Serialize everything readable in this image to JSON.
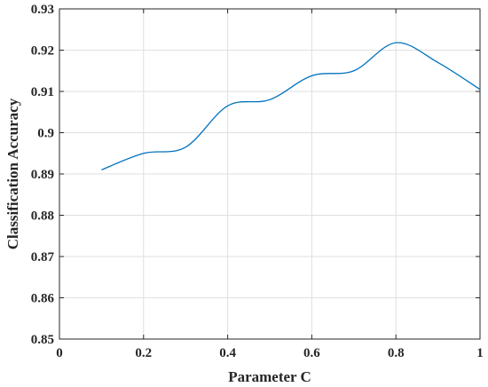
{
  "chart_data": {
    "type": "line",
    "title": "",
    "xlabel": "Parameter C",
    "ylabel": "Classification Accuracy",
    "xlim": [
      0,
      1
    ],
    "ylim": [
      0.85,
      0.93
    ],
    "grid": true,
    "x_ticks": [
      "0",
      "0.2",
      "0.4",
      "0.6",
      "0.8",
      "1"
    ],
    "y_ticks": [
      "0.85",
      "0.86",
      "0.87",
      "0.88",
      "0.89",
      "0.9",
      "0.91",
      "0.92",
      "0.93"
    ],
    "series": [
      {
        "color": "#0072bd",
        "x": [
          0.1,
          0.2,
          0.3,
          0.4,
          0.5,
          0.6,
          0.7,
          0.8,
          0.9,
          1.0
        ],
        "y": [
          0.891,
          0.895,
          0.8965,
          0.9065,
          0.908,
          0.9138,
          0.915,
          0.9218,
          0.917,
          0.9105
        ]
      }
    ]
  }
}
